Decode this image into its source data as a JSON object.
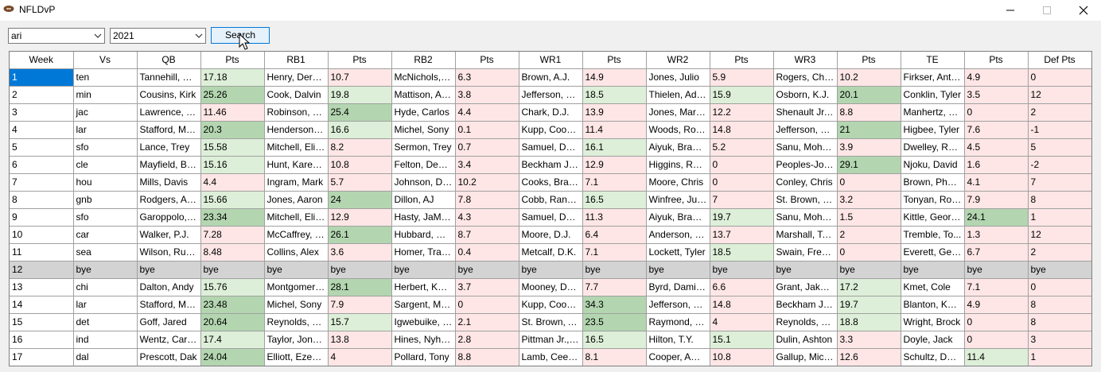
{
  "window": {
    "title": "NFLDvP",
    "icons": {
      "app": "football-icon",
      "minimize": "minimize-icon",
      "maximize": "maximize-icon",
      "close": "close-icon"
    }
  },
  "controls": {
    "team_value": "ari",
    "year_value": "2021",
    "search_label": "Search"
  },
  "colors": {
    "red": "#ffe6e6",
    "light_green": "#ddefd8",
    "dark_green": "#b3d6b0",
    "bye": "#d3d3d3",
    "selection": "#0078d7"
  },
  "grid": {
    "columns": [
      "Week",
      "Vs",
      "QB",
      "Pts",
      "RB1",
      "Pts",
      "RB2",
      "Pts",
      "WR1",
      "Pts",
      "WR2",
      "Pts",
      "WR3",
      "Pts",
      "TE",
      "Pts",
      "Def Pts"
    ],
    "rows": [
      {
        "cells": [
          "1",
          "ten",
          "Tannehill, Ry...",
          "17.18",
          "Henry, Derrick",
          "10.7",
          "McNichols, J...",
          "6.3",
          "Brown, A.J.",
          "14.9",
          "Jones, Julio",
          "5.9",
          "Rogers, Che...",
          "10.2",
          "Firkser, Anth...",
          "4.9",
          "0"
        ],
        "shade": [
          "lg",
          "r",
          "r",
          "r",
          "r",
          "r",
          "r",
          "r"
        ]
      },
      {
        "cells": [
          "2",
          "min",
          "Cousins, Kirk",
          "25.26",
          "Cook, Dalvin",
          "19.8",
          "Mattison, Ale...",
          "3.8",
          "Jefferson, Ju...",
          "18.5",
          "Thielen, Adam",
          "15.9",
          "Osborn, K.J.",
          "20.1",
          "Conklin, Tyler",
          "3.5",
          "12"
        ],
        "shade": [
          "dg",
          "lg",
          "r",
          "lg",
          "lg",
          "dg",
          "r",
          "r"
        ]
      },
      {
        "cells": [
          "3",
          "jac",
          "Lawrence, Tr...",
          "11.46",
          "Robinson, Ja...",
          "25.4",
          "Hyde, Carlos",
          "4.4",
          "Chark, D.J.",
          "13.9",
          "Jones, Marvin",
          "12.2",
          "Shenault Jr., ...",
          "8.8",
          "Manhertz, Ch...",
          "0",
          "2"
        ],
        "shade": [
          "r",
          "dg",
          "r",
          "r",
          "r",
          "r",
          "r",
          "r"
        ]
      },
      {
        "cells": [
          "4",
          "lar",
          "Stafford, Mat...",
          "20.3",
          "Henderson, ...",
          "16.6",
          "Michel, Sony",
          "0.1",
          "Kupp, Cooper",
          "11.4",
          "Woods, Robert",
          "14.8",
          "Jefferson, Van",
          "21",
          "Higbee, Tyler",
          "7.6",
          "-1"
        ],
        "shade": [
          "dg",
          "lg",
          "r",
          "r",
          "r",
          "dg",
          "r",
          "r"
        ]
      },
      {
        "cells": [
          "5",
          "sfo",
          "Lance, Trey",
          "15.58",
          "Mitchell, Elijah",
          "8.2",
          "Sermon, Trey",
          "0.7",
          "Samuel, Dee...",
          "16.1",
          "Aiyuk, Brandon",
          "5.2",
          "Sanu, Moha...",
          "3.9",
          "Dwelley, Ross",
          "4.5",
          "5"
        ],
        "shade": [
          "lg",
          "r",
          "r",
          "lg",
          "r",
          "r",
          "r",
          "r"
        ]
      },
      {
        "cells": [
          "6",
          "cle",
          "Mayfield, Ba...",
          "15.16",
          "Hunt, Kareem",
          "10.8",
          "Felton, Deme...",
          "3.4",
          "Beckham Jr.,...",
          "12.9",
          "Higgins, Ras...",
          "0",
          "Peoples-Jon...",
          "29.1",
          "Njoku, David",
          "1.6",
          "-2"
        ],
        "shade": [
          "lg",
          "r",
          "r",
          "r",
          "r",
          "dg",
          "r",
          "r"
        ]
      },
      {
        "cells": [
          "7",
          "hou",
          "Mills, Davis",
          "4.4",
          "Ingram, Mark",
          "5.7",
          "Johnson, Da...",
          "10.2",
          "Cooks, Brandin",
          "7.1",
          "Moore, Chris",
          "0",
          "Conley, Chris",
          "0",
          "Brown, Phar...",
          "4.1",
          "7"
        ],
        "shade": [
          "r",
          "r",
          "r",
          "r",
          "r",
          "r",
          "r",
          "r"
        ]
      },
      {
        "cells": [
          "8",
          "gnb",
          "Rodgers, Aar...",
          "15.66",
          "Jones, Aaron",
          "24",
          "Dillon, AJ",
          "7.8",
          "Cobb, Randall",
          "16.5",
          "Winfree, Juw...",
          "7",
          "St. Brown, E...",
          "3.2",
          "Tonyan, Rob...",
          "7.9",
          "8"
        ],
        "shade": [
          "lg",
          "dg",
          "r",
          "lg",
          "r",
          "r",
          "r",
          "r"
        ]
      },
      {
        "cells": [
          "9",
          "sfo",
          "Garoppolo, Ji...",
          "23.34",
          "Mitchell, Elijah",
          "12.9",
          "Hasty, JaMycal",
          "4.3",
          "Samuel, Dee...",
          "11.3",
          "Aiyuk, Brandon",
          "19.7",
          "Sanu, Moha...",
          "1.5",
          "Kittle, George",
          "24.1",
          "1"
        ],
        "shade": [
          "dg",
          "r",
          "r",
          "r",
          "lg",
          "r",
          "dg",
          "r"
        ]
      },
      {
        "cells": [
          "10",
          "car",
          "Walker, P.J.",
          "7.28",
          "McCaffrey, C...",
          "26.1",
          "Hubbard, Ch...",
          "8.7",
          "Moore, D.J.",
          "6.4",
          "Anderson, R...",
          "13.7",
          "Marshall, Ter...",
          "2",
          "Tremble, To...",
          "1.3",
          "12"
        ],
        "shade": [
          "r",
          "dg",
          "r",
          "r",
          "r",
          "r",
          "r",
          "r"
        ]
      },
      {
        "cells": [
          "11",
          "sea",
          "Wilson, Russell",
          "8.48",
          "Collins, Alex",
          "3.6",
          "Homer, Travis",
          "0.4",
          "Metcalf, D.K.",
          "7.1",
          "Lockett, Tyler",
          "18.5",
          "Swain, Freddie",
          "0",
          "Everett, Gerald",
          "6.7",
          "2"
        ],
        "shade": [
          "r",
          "r",
          "r",
          "r",
          "lg",
          "r",
          "r",
          "r"
        ]
      },
      {
        "cells": [
          "12",
          "bye",
          "bye",
          "bye",
          "bye",
          "bye",
          "bye",
          "bye",
          "bye",
          "bye",
          "bye",
          "bye",
          "bye",
          "bye",
          "bye",
          "bye",
          "bye"
        ],
        "bye": true
      },
      {
        "cells": [
          "13",
          "chi",
          "Dalton, Andy",
          "15.76",
          "Montgomery,...",
          "28.1",
          "Herbert, Khalil",
          "3.7",
          "Mooney, Dar...",
          "7.7",
          "Byrd, Damiere",
          "6.6",
          "Grant, Jakeem",
          "17.2",
          "Kmet, Cole",
          "7.1",
          "0"
        ],
        "shade": [
          "lg",
          "dg",
          "r",
          "r",
          "r",
          "lg",
          "r",
          "r"
        ]
      },
      {
        "cells": [
          "14",
          "lar",
          "Stafford, Mat...",
          "23.48",
          "Michel, Sony",
          "7.9",
          "Sargent, Mekhi",
          "0",
          "Kupp, Cooper",
          "34.3",
          "Jefferson, Van",
          "14.8",
          "Beckham Jr.,...",
          "19.7",
          "Blanton, Ken...",
          "4.9",
          "8"
        ],
        "shade": [
          "dg",
          "r",
          "r",
          "dg",
          "r",
          "lg",
          "r",
          "r"
        ]
      },
      {
        "cells": [
          "15",
          "det",
          "Goff, Jared",
          "20.64",
          "Reynolds, Cr...",
          "15.7",
          "Igwebuike, G...",
          "2.1",
          "St. Brown, A...",
          "23.5",
          "Raymond, Kalif",
          "4",
          "Reynolds, Josh",
          "18.8",
          "Wright, Brock",
          "0",
          "8"
        ],
        "shade": [
          "dg",
          "lg",
          "r",
          "dg",
          "r",
          "lg",
          "r",
          "r"
        ]
      },
      {
        "cells": [
          "16",
          "ind",
          "Wentz, Carson",
          "17.4",
          "Taylor, Jonat...",
          "13.8",
          "Hines, Nyheim",
          "2.8",
          "Pittman Jr., ...",
          "16.5",
          "Hilton, T.Y.",
          "15.1",
          "Dulin, Ashton",
          "3.3",
          "Doyle, Jack",
          "0",
          "3"
        ],
        "shade": [
          "lg",
          "r",
          "r",
          "lg",
          "lg",
          "r",
          "r",
          "r"
        ]
      },
      {
        "cells": [
          "17",
          "dal",
          "Prescott, Dak",
          "24.04",
          "Elliott, Ezekiel",
          "4",
          "Pollard, Tony",
          "8.8",
          "Lamb, CeeDee",
          "8.1",
          "Cooper, Amari",
          "10.8",
          "Gallup, Mich...",
          "12.6",
          "Schultz, Dalton",
          "11.4",
          "1"
        ],
        "shade": [
          "dg",
          "r",
          "r",
          "r",
          "r",
          "r",
          "lg",
          "r"
        ]
      }
    ]
  }
}
